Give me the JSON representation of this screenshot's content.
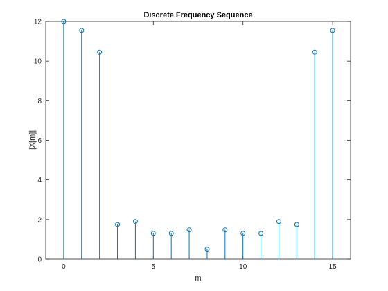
{
  "figure": {
    "background_color": "#ffffff"
  },
  "chart_data": {
    "type": "stem",
    "title": "Discrete Frequency Sequence",
    "xlabel": "m",
    "ylabel": "|X[m]|",
    "xlim": [
      -1,
      16
    ],
    "ylim": [
      0,
      12
    ],
    "xticks": [
      0,
      5,
      10,
      15
    ],
    "yticks": [
      0,
      2,
      4,
      6,
      8,
      10,
      12
    ],
    "grid": false,
    "legend": "none",
    "series_color": "#0072BD",
    "marker": "circle-open",
    "x": [
      0,
      1,
      2,
      3,
      4,
      5,
      6,
      7,
      8,
      9,
      10,
      11,
      12,
      13,
      14,
      15
    ],
    "values": [
      12.0,
      11.55,
      10.45,
      1.75,
      1.9,
      1.3,
      1.3,
      1.48,
      0.5,
      1.48,
      1.3,
      1.3,
      1.9,
      1.75,
      10.45,
      11.55
    ]
  }
}
